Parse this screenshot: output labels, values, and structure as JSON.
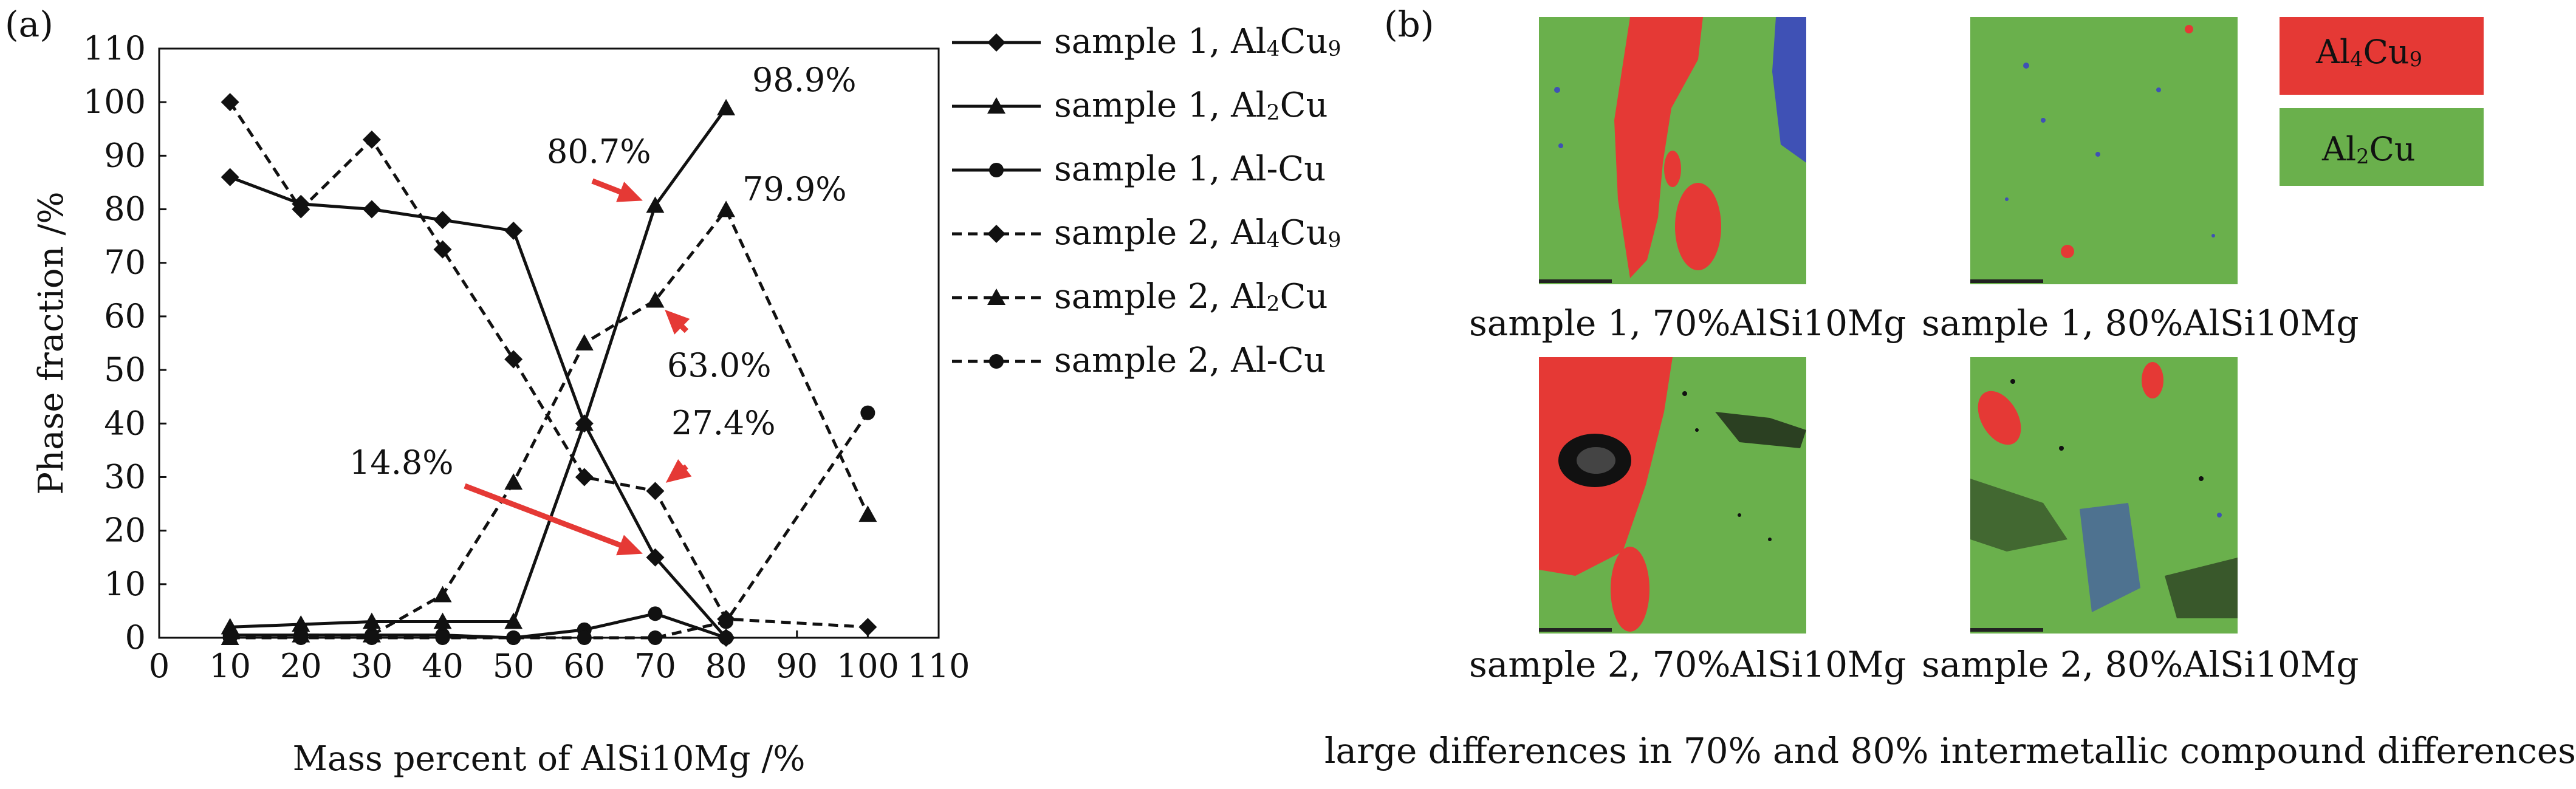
{
  "panel_a_label": "(a)",
  "panel_b_label": "(b)",
  "chart_data": {
    "type": "line",
    "xlabel": "Mass percent of AlSi10Mg /%",
    "ylabel": "Phase fraction /%",
    "xlim": [
      0,
      110
    ],
    "ylim": [
      0,
      110
    ],
    "xticks": [
      0,
      10,
      20,
      30,
      40,
      50,
      60,
      70,
      80,
      90,
      100,
      110
    ],
    "yticks": [
      0,
      10,
      20,
      30,
      40,
      50,
      60,
      70,
      80,
      90,
      100,
      110
    ],
    "grid": false,
    "legend_position": "right",
    "series": [
      {
        "name": "sample 1, Al4Cu9",
        "style": "solid",
        "marker": "diamond",
        "x": [
          10,
          20,
          30,
          40,
          50,
          60,
          70,
          80
        ],
        "y": [
          86,
          81,
          80,
          78,
          76,
          40,
          15,
          0
        ]
      },
      {
        "name": "sample 1, Al2Cu",
        "style": "solid",
        "marker": "triangle",
        "x": [
          10,
          20,
          30,
          40,
          50,
          60,
          70,
          80
        ],
        "y": [
          2,
          2.5,
          3,
          3,
          3,
          40,
          80.7,
          98.9
        ]
      },
      {
        "name": "sample 1, Al-Cu",
        "style": "solid",
        "marker": "circle",
        "x": [
          10,
          20,
          30,
          40,
          50,
          60,
          70,
          80
        ],
        "y": [
          0.5,
          0.5,
          0.5,
          0.5,
          0,
          1.5,
          4.5,
          0
        ]
      },
      {
        "name": "sample 2, Al4Cu9",
        "style": "dashed",
        "marker": "diamond",
        "x": [
          10,
          20,
          30,
          40,
          50,
          60,
          70,
          80,
          100
        ],
        "y": [
          100,
          80,
          93,
          72.5,
          52,
          30,
          27.4,
          3.5,
          2
        ]
      },
      {
        "name": "sample 2, Al2Cu",
        "style": "dashed",
        "marker": "triangle",
        "x": [
          10,
          20,
          30,
          40,
          50,
          60,
          70,
          80,
          100
        ],
        "y": [
          0,
          0.5,
          0.5,
          8,
          29,
          55,
          63,
          79.9,
          23
        ]
      },
      {
        "name": "sample 2, Al-Cu",
        "style": "dashed",
        "marker": "circle",
        "x": [
          10,
          20,
          30,
          40,
          50,
          60,
          70,
          80,
          100
        ],
        "y": [
          0,
          0,
          0,
          0,
          0,
          0,
          0,
          3,
          42
        ]
      }
    ],
    "annotations": [
      {
        "text": "98.9%",
        "x": 80,
        "y": 98.9
      },
      {
        "text": "80.7%",
        "x": 70,
        "y": 80.7,
        "arrow": true
      },
      {
        "text": "79.9%",
        "x": 80,
        "y": 79.9
      },
      {
        "text": "63.0%",
        "x": 70,
        "y": 63,
        "arrow": true
      },
      {
        "text": "27.4%",
        "x": 70,
        "y": 27.4,
        "arrow": true
      },
      {
        "text": "14.8%",
        "x": 70,
        "y": 14.8,
        "arrow": true
      }
    ]
  },
  "legend": {
    "items": [
      {
        "sample": "sample 1, ",
        "phase": "Al",
        "sub1": "4",
        "mid": "Cu",
        "sub2": "9"
      },
      {
        "sample": "sample 1, ",
        "phase": "Al",
        "sub1": "2",
        "mid": "Cu",
        "sub2": ""
      },
      {
        "sample": "sample 1, ",
        "phase": "Al-Cu",
        "sub1": "",
        "mid": "",
        "sub2": ""
      },
      {
        "sample": "sample 2, ",
        "phase": "Al",
        "sub1": "4",
        "mid": "Cu",
        "sub2": "9"
      },
      {
        "sample": "sample 2, ",
        "phase": "Al",
        "sub1": "2",
        "mid": "Cu",
        "sub2": ""
      },
      {
        "sample": "sample 2, ",
        "phase": "Al-Cu",
        "sub1": "",
        "mid": "",
        "sub2": ""
      }
    ]
  },
  "phase_key": {
    "al4cu9": {
      "a": "Al",
      "s1": "4",
      "b": "Cu",
      "s2": "9",
      "color": "#e53935"
    },
    "al2cu": {
      "a": "Al",
      "s1": "2",
      "b": "Cu",
      "color": "#6ab04c"
    }
  },
  "maps": {
    "s1_70": "sample 1, 70%AlSi10Mg",
    "s1_80": "sample 1, 80%AlSi10Mg",
    "s2_70": "sample 2, 70%AlSi10Mg",
    "s2_80": "sample 2, 80%AlSi10Mg"
  },
  "footer_caption": "large differences in 70% and 80% intermetallic compound differences",
  "colors": {
    "al4cu9": "#e53935",
    "al2cu": "#6ab04c",
    "other": "#3f51b5",
    "arrow": "#e53935"
  }
}
